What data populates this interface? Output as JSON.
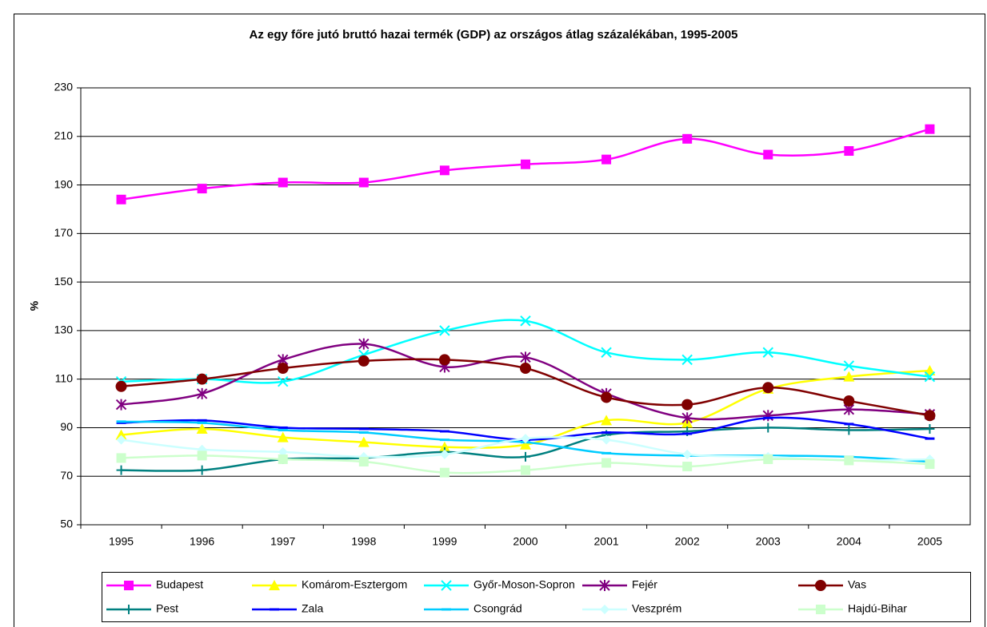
{
  "chart_data": {
    "type": "line",
    "title": "Az egy főre jutó bruttó hazai termék (GDP) az országos átlag százalékában, 1995-2005",
    "y_label": "%",
    "categories": [
      "1995",
      "1996",
      "1997",
      "1998",
      "1999",
      "2000",
      "2001",
      "2002",
      "2003",
      "2004",
      "2005"
    ],
    "ylim": [
      50,
      230
    ],
    "yticks": [
      50,
      70,
      90,
      110,
      130,
      150,
      170,
      190,
      210,
      230
    ],
    "grid": true,
    "smooth": true,
    "legend": "bottom",
    "series": [
      {
        "name": "Budapest",
        "color": "#ff00ff",
        "marker": "square",
        "values": [
          184,
          188.5,
          191,
          191,
          196,
          198.5,
          200.5,
          209,
          202.5,
          204,
          213
        ]
      },
      {
        "name": "Komárom-Esztergom",
        "color": "#ffff00",
        "marker": "triangle",
        "values": [
          87,
          89.5,
          86,
          84,
          82,
          83,
          93,
          92,
          106,
          111,
          113.5
        ]
      },
      {
        "name": "Győr-Moson-Sopron",
        "color": "#00ffff",
        "marker": "x",
        "values": [
          109,
          110,
          109,
          120,
          130,
          134,
          121,
          118,
          121,
          115.5,
          111
        ]
      },
      {
        "name": "Fejér",
        "color": "#800080",
        "marker": "star",
        "values": [
          99.5,
          104,
          118,
          124.5,
          115,
          119,
          104,
          94,
          95,
          97.5,
          95.5
        ]
      },
      {
        "name": "Vas",
        "color": "#800000",
        "marker": "circle",
        "values": [
          107,
          110,
          114.5,
          117.5,
          118,
          114.5,
          102.5,
          99.5,
          106.5,
          101,
          95
        ]
      },
      {
        "name": "Pest",
        "color": "#008080",
        "marker": "plus",
        "values": [
          72.5,
          72.5,
          77,
          77.5,
          80,
          78,
          87,
          88.5,
          90,
          89,
          89.5
        ]
      },
      {
        "name": "Zala",
        "color": "#0000ff",
        "marker": "dash",
        "values": [
          92,
          93,
          90,
          89.5,
          88.5,
          85,
          88,
          87.5,
          94,
          91.5,
          85.5
        ]
      },
      {
        "name": "Csongrád",
        "color": "#00ccff",
        "marker": "dash",
        "values": [
          92.5,
          92,
          89,
          88,
          85,
          84,
          79.5,
          78.5,
          78.5,
          78,
          76
        ]
      },
      {
        "name": "Veszprém",
        "color": "#ccffff",
        "marker": "diamond",
        "values": [
          85,
          81,
          80,
          78,
          79,
          85.5,
          85,
          79,
          78,
          76.5,
          77
        ]
      },
      {
        "name": "Hajdú-Bihar",
        "color": "#ccffcc",
        "marker": "square",
        "values": [
          77.5,
          78.5,
          77,
          76,
          71.5,
          72.5,
          75.5,
          74,
          77,
          76.5,
          75
        ]
      }
    ]
  }
}
